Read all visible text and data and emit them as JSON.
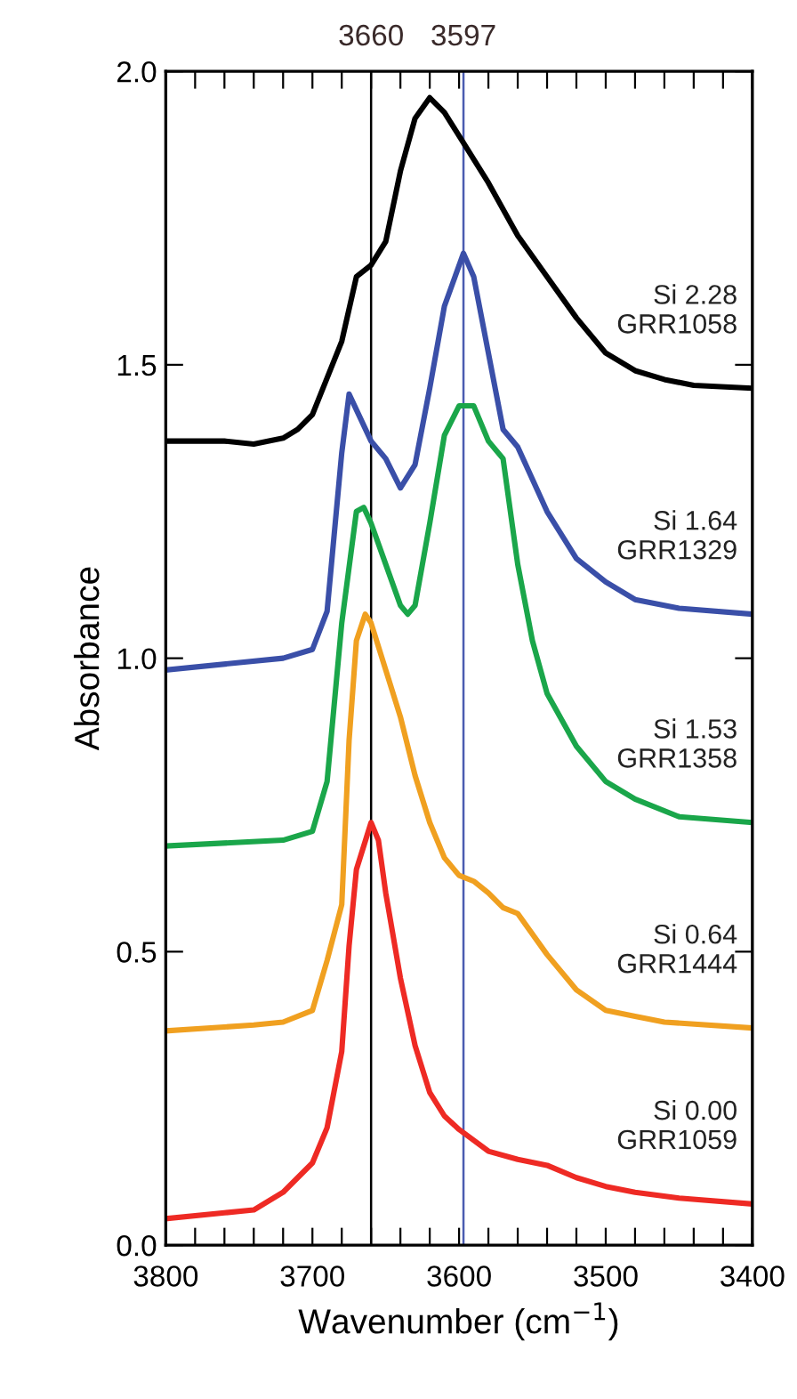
{
  "chart_data": {
    "type": "line",
    "xlabel": "Wavenumber (cm$^{−1}$)",
    "ylabel": "Absorbance",
    "xlim": [
      3800,
      3400
    ],
    "ylim": [
      0,
      2.0
    ],
    "xticks": [
      3800,
      {
        "value": 3780,
        "label": null
      },
      {
        "value": 3760,
        "label": null
      },
      {
        "value": 3740,
        "label": null
      },
      {
        "value": 3720,
        "label": null
      },
      3700,
      {
        "value": 3680,
        "label": null
      },
      {
        "value": 3660,
        "label": null
      },
      {
        "value": 3640,
        "label": null
      },
      {
        "value": 3620,
        "label": null
      },
      3600,
      {
        "value": 3580,
        "label": null
      },
      {
        "value": 3560,
        "label": null
      },
      {
        "value": 3540,
        "label": null
      },
      {
        "value": 3520,
        "label": null
      },
      3500,
      {
        "value": 3480,
        "label": null
      },
      {
        "value": 3460,
        "label": null
      },
      {
        "value": 3440,
        "label": null
      },
      {
        "value": 3420,
        "label": null
      },
      3400
    ],
    "yticks": [
      {
        "value": 0,
        "label": "0.0"
      },
      0.5,
      {
        "value": 1.0,
        "label": "1.0"
      },
      1.5,
      {
        "value": 2.0,
        "label": "2.0"
      }
    ],
    "grid": false,
    "legend": false,
    "annotations": [
      "Si 2.28\nGRR1058",
      "Si 1.64\nGRR1329",
      "Si 1.53\nGRR1358",
      "Si 0.64\nGRR1444",
      "Si 0.00\nGRR1059"
    ],
    "marker": "none",
    "line_style": "solid",
    "ref_lines": [
      {
        "axis": "x",
        "value": 3660,
        "label": "3660",
        "color": "#000000",
        "line_style": "solid"
      },
      {
        "axis": "x",
        "value": 3597,
        "label": "3597",
        "color": "#4a5cb0",
        "line_style": "solid"
      }
    ],
    "series": [
      {
        "color": "#000000",
        "x": [
          3800,
          3760,
          3740,
          3720,
          3710,
          3700,
          3680,
          3670,
          3660,
          3650,
          3640,
          3630,
          3620,
          3610,
          3600,
          3580,
          3560,
          3540,
          3520,
          3500,
          3480,
          3460,
          3440,
          3400
        ],
        "values": [
          1.37,
          1.37,
          1.365,
          1.375,
          1.39,
          1.415,
          1.54,
          1.65,
          1.67,
          1.71,
          1.83,
          1.92,
          1.955,
          1.93,
          1.89,
          1.81,
          1.72,
          1.65,
          1.58,
          1.52,
          1.49,
          1.475,
          1.465,
          1.46
        ]
      },
      {
        "color": "#3a4fa8",
        "x": [
          3800,
          3720,
          3700,
          3690,
          3680,
          3675,
          3660,
          3650,
          3640,
          3630,
          3620,
          3610,
          3597,
          3590,
          3580,
          3570,
          3560,
          3540,
          3520,
          3500,
          3480,
          3450,
          3400
        ],
        "values": [
          0.98,
          1.0,
          1.015,
          1.08,
          1.35,
          1.45,
          1.37,
          1.34,
          1.29,
          1.33,
          1.46,
          1.6,
          1.69,
          1.65,
          1.52,
          1.39,
          1.36,
          1.25,
          1.17,
          1.13,
          1.1,
          1.085,
          1.075
        ]
      },
      {
        "color": "#1aa64a",
        "x": [
          3800,
          3720,
          3700,
          3690,
          3680,
          3670,
          3665,
          3660,
          3650,
          3640,
          3635,
          3630,
          3620,
          3610,
          3600,
          3590,
          3580,
          3570,
          3560,
          3550,
          3540,
          3520,
          3500,
          3480,
          3450,
          3400
        ],
        "values": [
          0.68,
          0.69,
          0.705,
          0.79,
          1.06,
          1.25,
          1.257,
          1.23,
          1.16,
          1.09,
          1.075,
          1.09,
          1.23,
          1.38,
          1.43,
          1.43,
          1.37,
          1.34,
          1.16,
          1.03,
          0.94,
          0.85,
          0.79,
          0.76,
          0.73,
          0.72
        ]
      },
      {
        "color": "#f0a020",
        "x": [
          3800,
          3740,
          3720,
          3700,
          3690,
          3680,
          3675,
          3670,
          3664,
          3660,
          3650,
          3640,
          3630,
          3620,
          3610,
          3600,
          3590,
          3580,
          3570,
          3560,
          3540,
          3520,
          3500,
          3480,
          3460,
          3400
        ],
        "values": [
          0.365,
          0.375,
          0.38,
          0.4,
          0.485,
          0.58,
          0.86,
          1.03,
          1.075,
          1.06,
          0.98,
          0.9,
          0.8,
          0.72,
          0.66,
          0.63,
          0.62,
          0.6,
          0.575,
          0.565,
          0.495,
          0.435,
          0.4,
          0.39,
          0.38,
          0.37
        ]
      },
      {
        "color": "#ee2a24",
        "x": [
          3800,
          3760,
          3740,
          3720,
          3700,
          3690,
          3680,
          3675,
          3670,
          3660,
          3655,
          3650,
          3640,
          3630,
          3620,
          3610,
          3600,
          3580,
          3560,
          3540,
          3520,
          3500,
          3480,
          3450,
          3400
        ],
        "values": [
          0.045,
          0.055,
          0.06,
          0.09,
          0.14,
          0.2,
          0.33,
          0.51,
          0.64,
          0.72,
          0.69,
          0.6,
          0.455,
          0.34,
          0.26,
          0.22,
          0.197,
          0.16,
          0.146,
          0.136,
          0.115,
          0.1,
          0.09,
          0.08,
          0.07
        ]
      }
    ]
  }
}
